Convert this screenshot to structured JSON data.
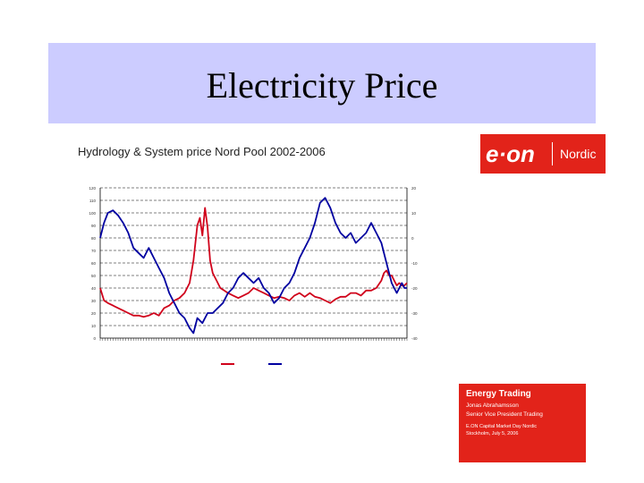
{
  "slide": {
    "title": "Electricity Price"
  },
  "chart_heading": "Hydrology & System price Nord Pool 2002-2006",
  "logo": {
    "mark": "e·on",
    "region": "Nordic"
  },
  "info_box": {
    "heading": "Energy Trading",
    "name": "Jonas Abrahamsson",
    "role": "Senior Vice President Trading",
    "event": "E.ON Capital Market Day Nordic",
    "place_date": "Stockholm, July 5, 2006"
  },
  "colors": {
    "title_band": "#ccccff",
    "price": "#d0021b",
    "hydrology": "#0000a0",
    "brand": "#e2231a"
  },
  "chart_data": {
    "type": "line",
    "title": "",
    "xlabel": "",
    "y_left": {
      "min": 0,
      "max": 120,
      "step": 10
    },
    "y_right": {
      "min": -40,
      "max": 20,
      "step": 10
    },
    "grid": true,
    "legend": "bottom",
    "x_count": 241,
    "series": [
      {
        "axis": "left",
        "points": [
          [
            0,
            40
          ],
          [
            3,
            30
          ],
          [
            6,
            28
          ],
          [
            10,
            26
          ],
          [
            14,
            24
          ],
          [
            18,
            22
          ],
          [
            22,
            20
          ],
          [
            26,
            18
          ],
          [
            30,
            18
          ],
          [
            34,
            17
          ],
          [
            38,
            18
          ],
          [
            42,
            20
          ],
          [
            46,
            18
          ],
          [
            50,
            24
          ],
          [
            54,
            26
          ],
          [
            58,
            30
          ],
          [
            62,
            32
          ],
          [
            66,
            36
          ],
          [
            70,
            44
          ],
          [
            73,
            62
          ],
          [
            76,
            90
          ],
          [
            78,
            96
          ],
          [
            80,
            82
          ],
          [
            82,
            104
          ],
          [
            84,
            88
          ],
          [
            86,
            62
          ],
          [
            88,
            52
          ],
          [
            91,
            46
          ],
          [
            94,
            40
          ],
          [
            97,
            38
          ],
          [
            100,
            36
          ],
          [
            104,
            34
          ],
          [
            108,
            32
          ],
          [
            112,
            34
          ],
          [
            116,
            36
          ],
          [
            120,
            40
          ],
          [
            124,
            38
          ],
          [
            128,
            36
          ],
          [
            132,
            34
          ],
          [
            136,
            32
          ],
          [
            140,
            33
          ],
          [
            144,
            32
          ],
          [
            148,
            30
          ],
          [
            152,
            34
          ],
          [
            156,
            36
          ],
          [
            160,
            33
          ],
          [
            164,
            36
          ],
          [
            168,
            33
          ],
          [
            172,
            32
          ],
          [
            176,
            30
          ],
          [
            180,
            28
          ],
          [
            184,
            31
          ],
          [
            188,
            33
          ],
          [
            192,
            33
          ],
          [
            196,
            36
          ],
          [
            200,
            36
          ],
          [
            204,
            34
          ],
          [
            208,
            38
          ],
          [
            212,
            38
          ],
          [
            216,
            40
          ],
          [
            220,
            46
          ],
          [
            222,
            52
          ],
          [
            224,
            54
          ],
          [
            226,
            50
          ],
          [
            228,
            50
          ],
          [
            230,
            46
          ],
          [
            232,
            42
          ],
          [
            234,
            44
          ],
          [
            236,
            42
          ],
          [
            238,
            42
          ],
          [
            240,
            44
          ]
        ]
      },
      {
        "axis": "right",
        "points": [
          [
            0,
            0
          ],
          [
            3,
            6
          ],
          [
            6,
            10
          ],
          [
            10,
            11
          ],
          [
            14,
            9
          ],
          [
            18,
            6
          ],
          [
            22,
            2
          ],
          [
            26,
            -4
          ],
          [
            30,
            -6
          ],
          [
            34,
            -8
          ],
          [
            38,
            -4
          ],
          [
            42,
            -8
          ],
          [
            46,
            -12
          ],
          [
            50,
            -16
          ],
          [
            54,
            -22
          ],
          [
            58,
            -26
          ],
          [
            62,
            -30
          ],
          [
            66,
            -32
          ],
          [
            70,
            -36
          ],
          [
            73,
            -38
          ],
          [
            76,
            -32
          ],
          [
            80,
            -34
          ],
          [
            84,
            -30
          ],
          [
            88,
            -30
          ],
          [
            92,
            -28
          ],
          [
            96,
            -26
          ],
          [
            100,
            -22
          ],
          [
            104,
            -20
          ],
          [
            108,
            -16
          ],
          [
            112,
            -14
          ],
          [
            116,
            -16
          ],
          [
            120,
            -18
          ],
          [
            124,
            -16
          ],
          [
            128,
            -20
          ],
          [
            132,
            -22
          ],
          [
            136,
            -26
          ],
          [
            140,
            -24
          ],
          [
            144,
            -20
          ],
          [
            148,
            -18
          ],
          [
            152,
            -14
          ],
          [
            156,
            -8
          ],
          [
            160,
            -4
          ],
          [
            164,
            0
          ],
          [
            168,
            6
          ],
          [
            172,
            14
          ],
          [
            176,
            16
          ],
          [
            180,
            12
          ],
          [
            184,
            6
          ],
          [
            188,
            2
          ],
          [
            192,
            0
          ],
          [
            196,
            2
          ],
          [
            200,
            -2
          ],
          [
            204,
            0
          ],
          [
            208,
            2
          ],
          [
            212,
            6
          ],
          [
            216,
            2
          ],
          [
            220,
            -2
          ],
          [
            224,
            -10
          ],
          [
            226,
            -14
          ],
          [
            228,
            -18
          ],
          [
            230,
            -20
          ],
          [
            232,
            -22
          ],
          [
            234,
            -20
          ],
          [
            236,
            -18
          ],
          [
            238,
            -20
          ],
          [
            240,
            -20
          ]
        ]
      }
    ]
  }
}
